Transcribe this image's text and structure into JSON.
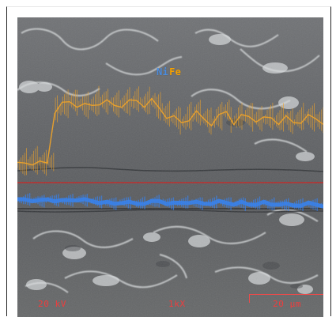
{
  "legend": {
    "element_a": "Ni",
    "element_b": "Fe"
  },
  "footer": {
    "kv": "20 kV",
    "mag": "1kX",
    "scale": "20 μm"
  },
  "colors": {
    "ni_trace": "#2f7ef0",
    "fe_trace": "#f0a020",
    "annotation_red": "#ef3d3d",
    "substrate": "#5f6163"
  },
  "profiles": {
    "fe_values": [
      0.34,
      0.36,
      0.37,
      0.35,
      0.36,
      0.79,
      0.83,
      0.86,
      0.84,
      0.82,
      0.83,
      0.86,
      0.85,
      0.83,
      0.84,
      0.85,
      0.87,
      0.84,
      0.86,
      0.81,
      0.75,
      0.72,
      0.69,
      0.73,
      0.76,
      0.72,
      0.69,
      0.73,
      0.78,
      0.7,
      0.73,
      0.74,
      0.72,
      0.71,
      0.73,
      0.7,
      0.72,
      0.69,
      0.71,
      0.73,
      0.72,
      0.7
    ],
    "ni_values": [
      0.17,
      0.18,
      0.17,
      0.16,
      0.18,
      0.17,
      0.16,
      0.17,
      0.18,
      0.17,
      0.16,
      0.15,
      0.14,
      0.13,
      0.15,
      0.14,
      0.13,
      0.14,
      0.15,
      0.16,
      0.14,
      0.13,
      0.14,
      0.15,
      0.14,
      0.13,
      0.14,
      0.15,
      0.14,
      0.13,
      0.14,
      0.12,
      0.13,
      0.14,
      0.12,
      0.13,
      0.12,
      0.11,
      0.12,
      0.13,
      0.12,
      0.11
    ]
  }
}
